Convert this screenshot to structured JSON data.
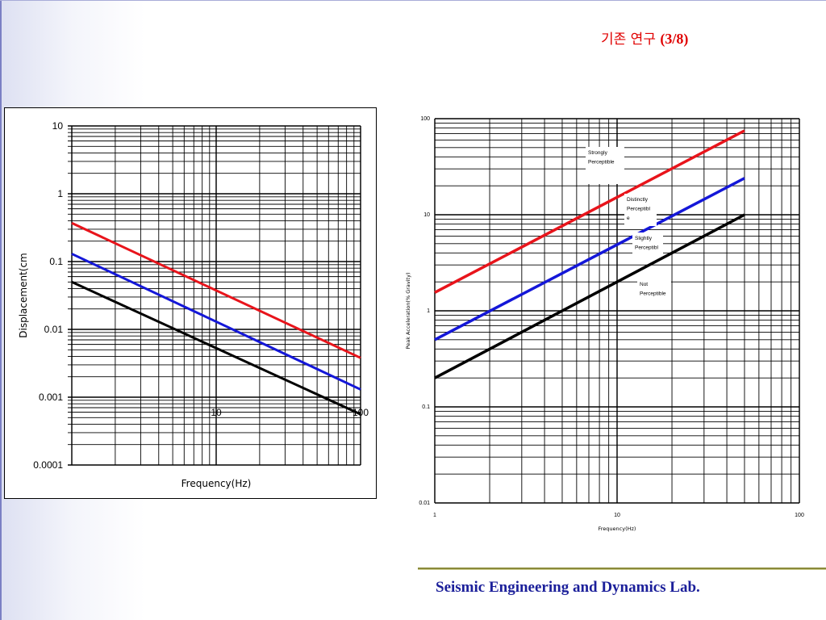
{
  "slide": {
    "title_korean": "기존 연구",
    "title_number": "(3/8)",
    "footer": "Seismic Engineering and Dynamics Lab."
  },
  "colors": {
    "red": "#e8141b",
    "blue": "#1417d8",
    "black": "#000000",
    "title": "#e00000",
    "footer": "#1b1f9a"
  },
  "chart_data": [
    {
      "type": "line",
      "xlabel": "Frequency(Hz)",
      "ylabel": "Displacement(cm",
      "x_scale": "log",
      "y_scale": "log",
      "xlim": [
        1,
        100
      ],
      "ylim": [
        0.0001,
        10
      ],
      "x_tick_labels": [
        "10",
        "100"
      ],
      "y_tick_labels": [
        "10",
        "1",
        "0.1",
        "0.01",
        "0.001",
        "0.0001"
      ],
      "grid": true,
      "series": [
        {
          "color": "red",
          "x": [
            1,
            100
          ],
          "y": [
            0.37,
            0.0038
          ]
        },
        {
          "color": "blue",
          "x": [
            1,
            100
          ],
          "y": [
            0.13,
            0.0013
          ]
        },
        {
          "color": "black",
          "x": [
            1,
            100
          ],
          "y": [
            0.05,
            0.00056
          ]
        }
      ]
    },
    {
      "type": "line",
      "xlabel": "Frequency(Hz)",
      "ylabel": "Peak Acceleration(% Gravity)",
      "x_scale": "log",
      "y_scale": "log",
      "xlim": [
        1,
        100
      ],
      "ylim": [
        0.01,
        100
      ],
      "x_tick_labels": [
        "1",
        "10",
        "100"
      ],
      "y_tick_labels": [
        "100",
        "10",
        "1",
        "0.1",
        "0.01"
      ],
      "grid": true,
      "annotations": [
        "Strongly Perceptible",
        "Distinctly Perceptible",
        "Slightly Perceptibl",
        "Not Perceptible"
      ],
      "series": [
        {
          "color": "red",
          "x": [
            1,
            50
          ],
          "y": [
            1.55,
            75
          ]
        },
        {
          "color": "blue",
          "x": [
            1,
            50
          ],
          "y": [
            0.5,
            24
          ]
        },
        {
          "color": "black",
          "x": [
            1,
            50
          ],
          "y": [
            0.2,
            10
          ]
        }
      ]
    }
  ]
}
